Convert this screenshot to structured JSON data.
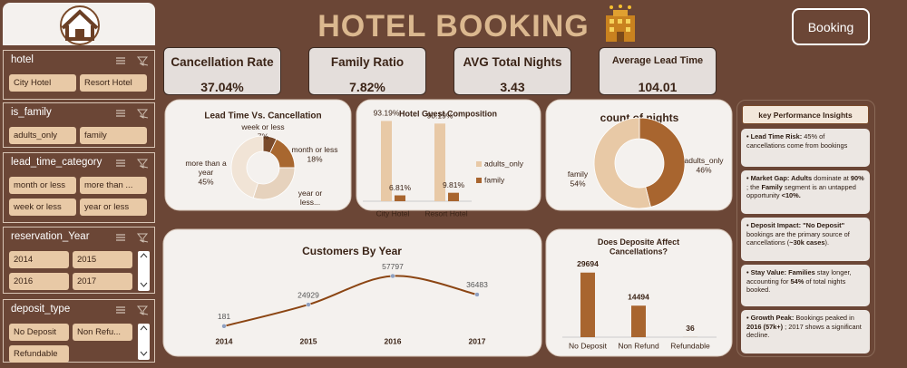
{
  "header": {
    "title": "HOTEL BOOKING",
    "button": "Booking"
  },
  "slicers": [
    {
      "title": "hotel",
      "items": [
        "City Hotel",
        "Resort Hotel"
      ]
    },
    {
      "title": "is_family",
      "items": [
        "adults_only",
        "family"
      ]
    },
    {
      "title": "lead_time_category",
      "items": [
        "month or less",
        "more than ...",
        "week or less",
        "year or less"
      ]
    },
    {
      "title": "reservation_Year",
      "items": [
        "2014",
        "2015",
        "2016",
        "2017"
      ]
    },
    {
      "title": "deposit_type",
      "items": [
        "No Deposit",
        "Non Refu...",
        "Refundable"
      ]
    }
  ],
  "kpis": [
    {
      "label": "Cancellation Rate",
      "value": "37.04%"
    },
    {
      "label": "Family Ratio",
      "value": "7.82%"
    },
    {
      "label": "AVG Total Nights",
      "value": "3.43"
    },
    {
      "label": "Average Lead Time",
      "value": "104.01"
    }
  ],
  "charts": [
    {
      "type": "donut",
      "title": "Lead Time Vs. Cancellation",
      "categories": [
        "week or less",
        "month or less",
        "year or less...",
        "more than a year"
      ],
      "values": [
        7,
        18,
        30,
        45
      ],
      "value_labels": [
        "7%",
        "18%",
        null,
        "45%"
      ],
      "colors": [
        "#7a4a2a",
        "#a8672f",
        "#e6d2bd",
        "#f1e4d6"
      ]
    },
    {
      "type": "bar",
      "title": "Hotel Guest Composition",
      "categories": [
        "City Hotel",
        "Resort Hotel"
      ],
      "series": [
        {
          "name": "adults_only",
          "color": "#e8c9a6",
          "values": [
            93.19,
            90.19
          ],
          "value_labels": [
            "93.19%",
            "90.19%"
          ]
        },
        {
          "name": "family",
          "color": "#a8652f",
          "values": [
            6.81,
            9.81
          ],
          "value_labels": [
            "6.81%",
            "9.81%"
          ]
        }
      ]
    },
    {
      "type": "donut",
      "title": "count of nights",
      "categories": [
        "adults_only",
        "family"
      ],
      "values": [
        46,
        54
      ],
      "value_labels": [
        "46%",
        "54%"
      ],
      "colors": [
        "#a8652f",
        "#e8c9a6"
      ]
    },
    {
      "type": "line",
      "title": "Customers By Year",
      "categories": [
        "2014",
        "2015",
        "2016",
        "2017"
      ],
      "values": [
        181,
        24929,
        57797,
        36483
      ],
      "color": "#8b4513"
    },
    {
      "type": "bar",
      "title": "Does Deposite Affect Cancellations?",
      "categories": [
        "No Deposit",
        "Non Refund",
        "Refundable"
      ],
      "values": [
        29694,
        14494,
        36
      ],
      "color": "#a8652f"
    }
  ],
  "insights": {
    "title": "key Performance Insights",
    "items": [
      [
        {
          "b": "• Lead Time Risk:"
        },
        {
          "t": " 45% of cancellations come from bookings"
        }
      ],
      [
        {
          "b": "• Market Gap: Adults"
        },
        {
          "t": " dominate at "
        },
        {
          "b": "90%"
        },
        {
          "t": " ; the "
        },
        {
          "b": "Family"
        },
        {
          "t": " segment is an untapped opportunity "
        },
        {
          "b": "<10%."
        }
      ],
      [
        {
          "b": "• Deposit Impact: \"No Deposit\""
        },
        {
          "t": " bookings are the primary source of cancellations ("
        },
        {
          "b": "~30k cases"
        },
        {
          "t": ")."
        }
      ],
      [
        {
          "b": "• Stay Value: Families"
        },
        {
          "t": " stay longer, accounting for "
        },
        {
          "b": "54%"
        },
        {
          "t": " of total nights booked."
        }
      ],
      [
        {
          "b": "• Growth Peak:"
        },
        {
          "t": " Bookings peaked in "
        },
        {
          "b": "2016 (57k+)"
        },
        {
          "t": " ; 2017 shows a significant decline."
        }
      ]
    ]
  }
}
